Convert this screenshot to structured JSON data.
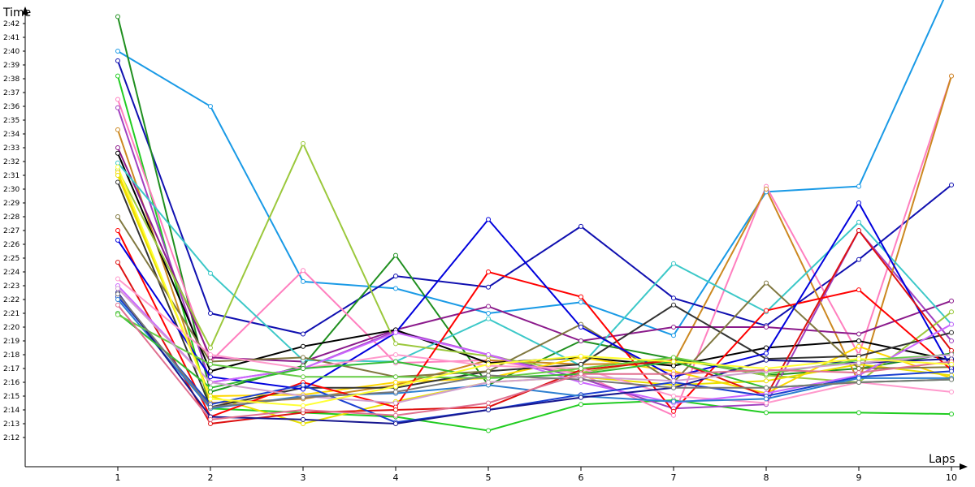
{
  "chart_data": {
    "type": "line",
    "title": "",
    "xlabel": "Laps",
    "ylabel": "Time",
    "xlim": [
      0,
      10
    ],
    "ylim": [
      131,
      164
    ],
    "x": [
      1,
      2,
      3,
      4,
      5,
      6,
      7,
      8,
      9,
      10
    ],
    "y_ticks": [
      132,
      133,
      134,
      135,
      136,
      137,
      138,
      139,
      140,
      141,
      142,
      143,
      144,
      145,
      146,
      147,
      148,
      149,
      150,
      151,
      152,
      153,
      154,
      155,
      156,
      157,
      158,
      159,
      160,
      161,
      162
    ],
    "y_tick_labels": [
      "2:12",
      "2:13",
      "2:14",
      "2:15",
      "2:16",
      "2:17",
      "2:18",
      "2:19",
      "2:20",
      "2:21",
      "2:22",
      "2:23",
      "2:24",
      "2:25",
      "2:26",
      "2:27",
      "2:28",
      "2:29",
      "2:30",
      "2:31",
      "2:32",
      "2:33",
      "2:34",
      "2:35",
      "2:36",
      "2:37",
      "2:38",
      "2:39",
      "2:40",
      "2:41",
      "2:42"
    ],
    "x_tick_labels": [
      "1",
      "2",
      "3",
      "4",
      "5",
      "6",
      "7",
      "8",
      "9",
      "10"
    ],
    "grid": false,
    "series": [
      {
        "color": "#1a9ae6",
        "values": [
          160.0,
          156.0,
          143.3,
          142.8,
          141.0,
          141.8,
          139.4,
          149.8,
          150.2,
          165.0
        ]
      },
      {
        "color": "#1010b0",
        "values": [
          159.3,
          141.0,
          139.5,
          143.7,
          142.9,
          147.3,
          142.1,
          140.1,
          144.9,
          150.3
        ]
      },
      {
        "color": "#1f8f1f",
        "values": [
          162.5,
          135.3,
          137.2,
          145.2,
          135.8,
          139.0,
          137.7,
          136.5,
          137.0,
          138.1
        ]
      },
      {
        "color": "#22cc22",
        "values": [
          158.2,
          134.1,
          133.8,
          133.5,
          132.5,
          134.4,
          134.7,
          133.8,
          133.8,
          133.7
        ]
      },
      {
        "color": "#ff7fbf",
        "values": [
          156.5,
          137.5,
          144.1,
          137.4,
          137.6,
          136.6,
          133.6,
          150.2,
          138.0,
          158.2
        ]
      },
      {
        "color": "#a040c0",
        "values": [
          155.9,
          136.0,
          137.0,
          139.7,
          138.0,
          136.3,
          134.1,
          134.4,
          147.0,
          139.0
        ]
      },
      {
        "color": "#cc8820",
        "values": [
          154.3,
          134.5,
          134.8,
          135.8,
          137.6,
          137.3,
          137.4,
          150.0,
          136.0,
          158.2
        ]
      },
      {
        "color": "#8b1a8b",
        "values": [
          153.0,
          137.8,
          137.5,
          139.8,
          141.5,
          139.0,
          140.0,
          140.0,
          139.5,
          141.9
        ]
      },
      {
        "color": "#000000",
        "values": [
          152.6,
          136.8,
          138.6,
          139.8,
          137.4,
          137.8,
          137.2,
          138.5,
          139.0,
          137.6
        ]
      },
      {
        "color": "#3cc8c8",
        "values": [
          151.9,
          143.9,
          137.6,
          137.5,
          140.6,
          137.2,
          144.6,
          141.1,
          147.6,
          140.2
        ]
      },
      {
        "color": "#9bc83c",
        "values": [
          151.4,
          138.5,
          153.3,
          138.8,
          137.9,
          136.7,
          137.8,
          136.5,
          136.0,
          141.1
        ]
      },
      {
        "color": "#ffd700",
        "values": [
          151.2,
          135.0,
          135.1,
          136.0,
          136.3,
          137.8,
          136.8,
          135.2,
          138.6,
          136.3
        ]
      },
      {
        "color": "#e8e000",
        "values": [
          151.0,
          135.0,
          133.0,
          134.6,
          136.0,
          136.4,
          135.8,
          136.1,
          137.3,
          136.5
        ]
      },
      {
        "color": "#333333",
        "values": [
          150.5,
          134.2,
          135.6,
          135.6,
          136.8,
          137.3,
          141.6,
          137.7,
          137.9,
          139.6
        ]
      },
      {
        "color": "#807840",
        "values": [
          148.0,
          137.5,
          137.8,
          136.4,
          136.8,
          140.2,
          136.0,
          143.2,
          137.0,
          137.1
        ]
      },
      {
        "color": "#ff0000",
        "values": [
          147.0,
          133.5,
          136.0,
          134.2,
          144.0,
          142.2,
          133.9,
          141.2,
          142.7,
          136.9
        ]
      },
      {
        "color": "#0000dd",
        "values": [
          146.3,
          136.4,
          135.5,
          139.6,
          147.8,
          140.0,
          136.4,
          138.1,
          149.0,
          137.0
        ]
      },
      {
        "color": "#dd1111",
        "values": [
          144.7,
          133.0,
          133.8,
          134.0,
          134.2,
          136.9,
          137.6,
          135.0,
          147.0,
          138.3
        ]
      },
      {
        "color": "#ff99cc",
        "values": [
          143.5,
          138.0,
          137.0,
          138.0,
          137.2,
          137.0,
          135.0,
          134.5,
          136.0,
          135.3
        ]
      },
      {
        "color": "#cc66ff",
        "values": [
          143.0,
          136.0,
          137.0,
          139.6,
          138.0,
          136.0,
          134.5,
          135.2,
          136.5,
          140.2
        ]
      },
      {
        "color": "#1a3fd0",
        "values": [
          142.2,
          134.4,
          135.8,
          133.1,
          134.0,
          135.1,
          136.0,
          135.0,
          136.4,
          136.8
        ]
      },
      {
        "color": "#2d7fd0",
        "values": [
          142.0,
          134.1,
          135.0,
          135.2,
          135.8,
          135.0,
          134.6,
          134.8,
          136.3,
          136.3
        ]
      },
      {
        "color": "#17178f",
        "values": [
          142.5,
          133.5,
          133.3,
          133.0,
          134.0,
          134.9,
          135.6,
          137.6,
          137.4,
          137.7
        ]
      },
      {
        "color": "#33bb33",
        "values": [
          141.0,
          135.6,
          137.0,
          137.5,
          136.3,
          136.6,
          137.5,
          135.6,
          136.0,
          136.2
        ]
      },
      {
        "color": "#66cc44",
        "values": [
          140.9,
          137.3,
          136.4,
          136.4,
          136.3,
          137.0,
          137.8,
          136.6,
          137.6,
          138.0
        ]
      },
      {
        "color": "#d0a0d0",
        "values": [
          142.8,
          136.0,
          135.0,
          134.5,
          136.0,
          136.4,
          136.1,
          136.8,
          137.4,
          138.0
        ]
      },
      {
        "color": "#777777",
        "values": [
          142.4,
          134.2,
          134.9,
          135.3,
          136.5,
          136.2,
          135.6,
          135.6,
          136.0,
          136.2
        ]
      },
      {
        "color": "#e07090",
        "values": [
          141.6,
          133.3,
          134.0,
          133.6,
          134.5,
          136.6,
          136.6,
          136.9,
          136.7,
          137.5
        ]
      },
      {
        "color": "#ffff33",
        "values": [
          151.6,
          134.8,
          134.3,
          135.7,
          137.3,
          137.9,
          137.5,
          137.0,
          137.7,
          137.3
        ]
      }
    ]
  }
}
